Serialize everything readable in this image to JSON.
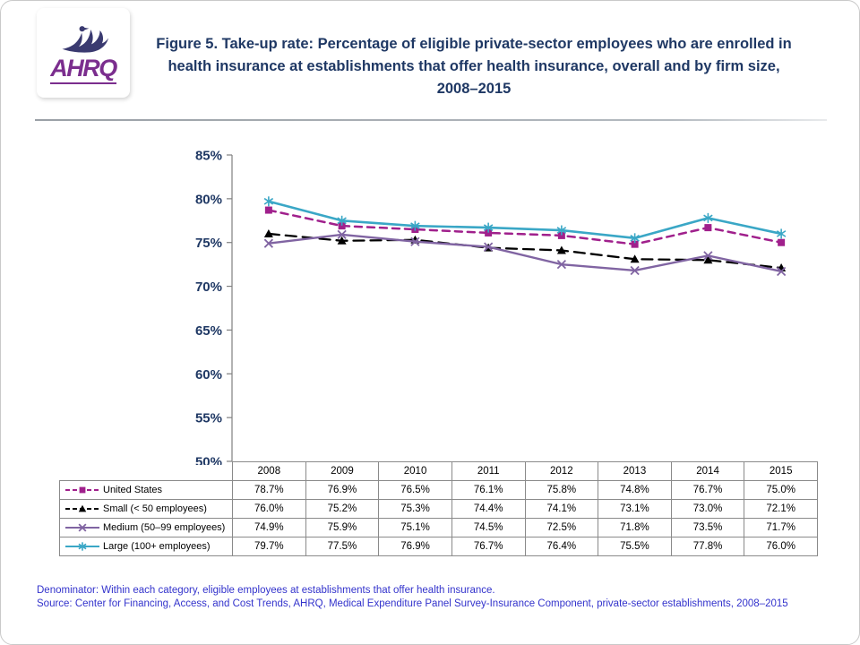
{
  "header": {
    "logo_text": "AHRQ",
    "title": "Figure 5. Take-up rate: Percentage of eligible private-sector employees who are enrolled in health insurance at establishments that offer health insurance, overall and by firm size, 2008–2015"
  },
  "chart_data": {
    "type": "line",
    "title": "Take-up rate: Percentage of eligible private-sector employees who are enrolled in health insurance at establishments that offer health insurance, overall and by firm size, 2008–2015",
    "xlabel": "",
    "ylabel": "",
    "categories": [
      "2008",
      "2009",
      "2010",
      "2011",
      "2012",
      "2013",
      "2014",
      "2015"
    ],
    "series": [
      {
        "name": "United States",
        "values": [
          78.7,
          76.9,
          76.5,
          76.1,
          75.8,
          74.8,
          76.7,
          75.0
        ],
        "color": "#A0208C",
        "dash": "8,6",
        "width": 2.5,
        "marker": "square"
      },
      {
        "name": "Small (< 50 employees)",
        "values": [
          76.0,
          75.2,
          75.3,
          74.4,
          74.1,
          73.1,
          73.0,
          72.1
        ],
        "color": "#000000",
        "dash": "12,7",
        "width": 2.3,
        "marker": "triangle"
      },
      {
        "name": "Medium (50–99 employees)",
        "values": [
          74.9,
          75.9,
          75.1,
          74.5,
          72.5,
          71.8,
          73.5,
          71.7
        ],
        "color": "#8064A2",
        "dash": "",
        "width": 2.4,
        "marker": "x"
      },
      {
        "name": "Large (100+ employees)",
        "values": [
          79.7,
          77.5,
          76.9,
          76.7,
          76.4,
          75.5,
          77.8,
          76.0
        ],
        "color": "#3AA7C6",
        "dash": "",
        "width": 2.6,
        "marker": "asterisk"
      }
    ],
    "ylim": [
      50,
      85
    ],
    "ytick_step": 5,
    "ytick_labels": [
      "50%",
      "55%",
      "60%",
      "65%",
      "70%",
      "75%",
      "80%",
      "85%"
    ],
    "grid": false,
    "legend_position": "table-left"
  },
  "table": {
    "columns": [
      "2008",
      "2009",
      "2010",
      "2011",
      "2012",
      "2013",
      "2014",
      "2015"
    ],
    "row_labels": [
      "United States",
      "Small (< 50 employees)",
      "Medium (50–99 employees)",
      "Large (100+ employees)"
    ],
    "cells": [
      [
        "78.7%",
        "76.9%",
        "76.5%",
        "76.1%",
        "75.8%",
        "74.8%",
        "76.7%",
        "75.0%"
      ],
      [
        "76.0%",
        "75.2%",
        "75.3%",
        "74.4%",
        "74.1%",
        "73.1%",
        "73.0%",
        "72.1%"
      ],
      [
        "74.9%",
        "75.9%",
        "75.1%",
        "74.5%",
        "72.5%",
        "71.8%",
        "73.5%",
        "71.7%"
      ],
      [
        "79.7%",
        "77.5%",
        "76.9%",
        "76.7%",
        "76.4%",
        "75.5%",
        "77.8%",
        "76.0%"
      ]
    ]
  },
  "footer": {
    "denominator": "Denominator: Within each category, eligible employees at establishments that offer health insurance.",
    "source": "Source: Center for Financing, Access, and Cost Trends, AHRQ, Medical Expenditure Panel Survey-Insurance Component, private-sector establishments, 2008–2015"
  },
  "colors": {
    "title_text": "#1F3864",
    "axis_label_text": "#1F3864",
    "footer_text": "#3333CC",
    "logo_purple": "#7B2E8E",
    "table_border": "#8a8a8a"
  }
}
